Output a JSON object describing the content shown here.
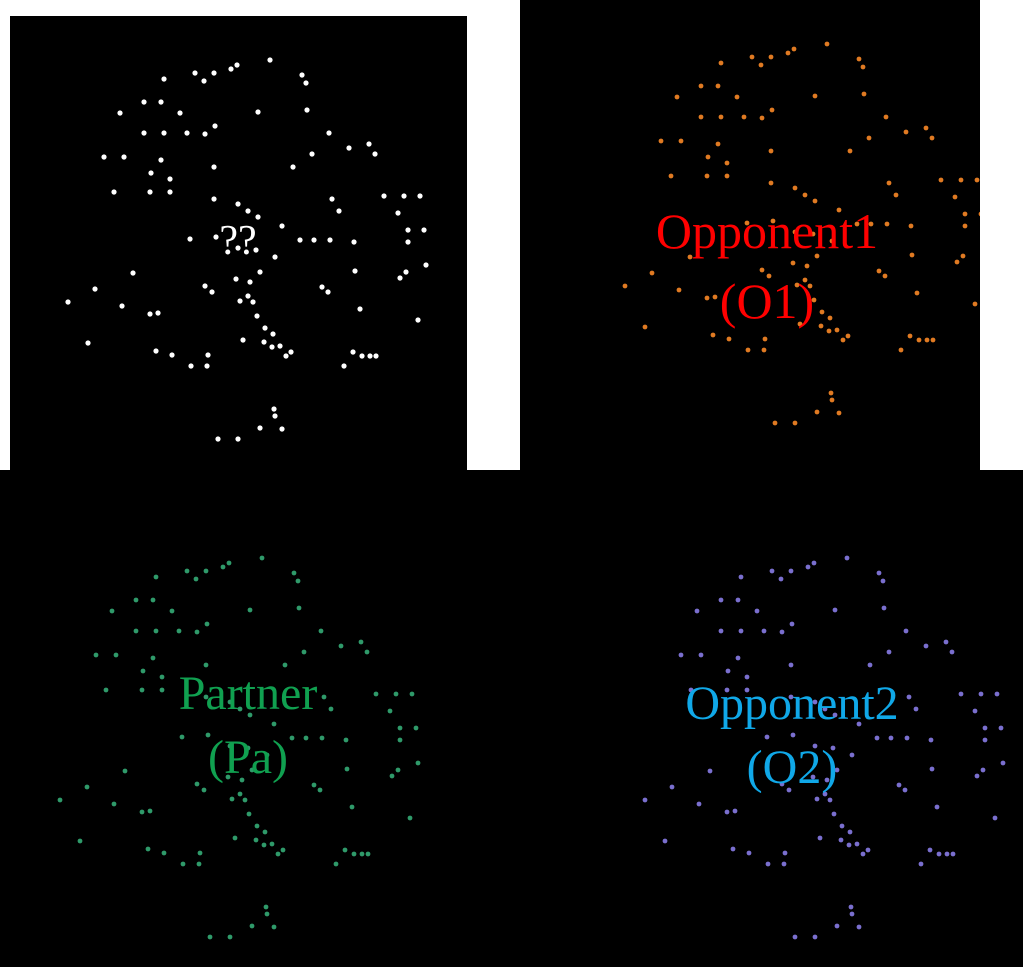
{
  "panels": {
    "unknown": {
      "label_line1": "??",
      "label_line2": "",
      "label_color": "#ffffff",
      "dot_color": "#ffffff"
    },
    "opponent1": {
      "label_line1": "Opponent1",
      "label_line2": "(O1)",
      "label_color": "#ff0000",
      "dot_color": "#e07a22"
    },
    "partner": {
      "label_line1": "Partner",
      "label_line2": "(Pa)",
      "label_color": "#10a050",
      "dot_color": "#2f9a6a"
    },
    "opponent2": {
      "label_line1": "Opponent2",
      "label_line2": "(O2)",
      "label_color": "#10a8e8",
      "dot_color": "#7a6fcf"
    }
  }
}
